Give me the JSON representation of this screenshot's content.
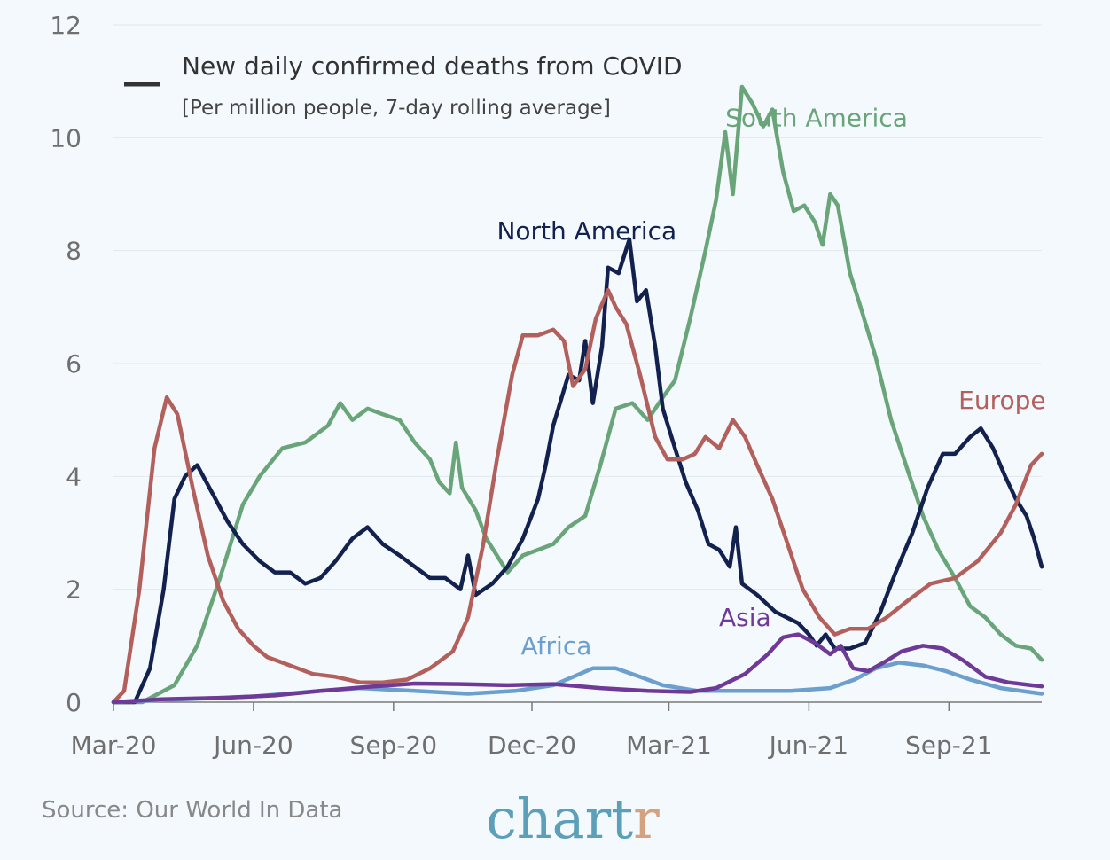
{
  "chart_data": {
    "type": "line",
    "title": "New daily confirmed deaths from COVID",
    "subtitle": "[Per million people, 7-day rolling average]",
    "ylim": [
      0,
      12
    ],
    "yticks": [
      0,
      2,
      4,
      6,
      8,
      10,
      12
    ],
    "x_start": "2020-03-01",
    "x_end": "2021-11-01",
    "xticks": [
      {
        "date": "2020-03-01",
        "label": "Mar-20"
      },
      {
        "date": "2020-06-01",
        "label": "Jun-20"
      },
      {
        "date": "2020-09-01",
        "label": "Sep-20"
      },
      {
        "date": "2020-12-01",
        "label": "Dec-20"
      },
      {
        "date": "2021-03-01",
        "label": "Mar-21"
      },
      {
        "date": "2021-06-01",
        "label": "Jun-21"
      },
      {
        "date": "2021-09-01",
        "label": "Sep-21"
      }
    ],
    "grid": true,
    "series": [
      {
        "name": "South America",
        "color": "#6aa57a",
        "label_date": "2021-06-06",
        "label_value": 10.2,
        "points": [
          [
            "2020-03-01",
            0
          ],
          [
            "2020-03-20",
            0
          ],
          [
            "2020-04-10",
            0.3
          ],
          [
            "2020-04-25",
            1
          ],
          [
            "2020-05-10",
            2.2
          ],
          [
            "2020-05-25",
            3.5
          ],
          [
            "2020-06-05",
            4.0
          ],
          [
            "2020-06-20",
            4.5
          ],
          [
            "2020-07-05",
            4.6
          ],
          [
            "2020-07-20",
            4.9
          ],
          [
            "2020-07-28",
            5.3
          ],
          [
            "2020-08-05",
            5.0
          ],
          [
            "2020-08-15",
            5.2
          ],
          [
            "2020-08-25",
            5.1
          ],
          [
            "2020-09-05",
            5.0
          ],
          [
            "2020-09-15",
            4.6
          ],
          [
            "2020-09-25",
            4.3
          ],
          [
            "2020-10-01",
            3.9
          ],
          [
            "2020-10-08",
            3.7
          ],
          [
            "2020-10-12",
            4.6
          ],
          [
            "2020-10-16",
            3.8
          ],
          [
            "2020-10-25",
            3.4
          ],
          [
            "2020-11-01",
            2.9
          ],
          [
            "2020-11-08",
            2.6
          ],
          [
            "2020-11-15",
            2.3
          ],
          [
            "2020-11-25",
            2.6
          ],
          [
            "2020-12-05",
            2.7
          ],
          [
            "2020-12-15",
            2.8
          ],
          [
            "2020-12-25",
            3.1
          ],
          [
            "2021-01-05",
            3.3
          ],
          [
            "2021-01-15",
            4.2
          ],
          [
            "2021-01-25",
            5.2
          ],
          [
            "2021-02-05",
            5.3
          ],
          [
            "2021-02-15",
            5.0
          ],
          [
            "2021-02-25",
            5.4
          ],
          [
            "2021-03-05",
            5.7
          ],
          [
            "2021-03-15",
            6.8
          ],
          [
            "2021-03-25",
            8.0
          ],
          [
            "2021-04-01",
            8.9
          ],
          [
            "2021-04-07",
            10.1
          ],
          [
            "2021-04-12",
            9.0
          ],
          [
            "2021-04-18",
            10.9
          ],
          [
            "2021-04-25",
            10.6
          ],
          [
            "2021-05-02",
            10.2
          ],
          [
            "2021-05-08",
            10.5
          ],
          [
            "2021-05-15",
            9.4
          ],
          [
            "2021-05-22",
            8.7
          ],
          [
            "2021-05-29",
            8.8
          ],
          [
            "2021-06-05",
            8.5
          ],
          [
            "2021-06-10",
            8.1
          ],
          [
            "2021-06-15",
            9.0
          ],
          [
            "2021-06-20",
            8.8
          ],
          [
            "2021-06-28",
            7.6
          ],
          [
            "2021-07-05",
            7.0
          ],
          [
            "2021-07-15",
            6.1
          ],
          [
            "2021-07-25",
            5.0
          ],
          [
            "2021-08-05",
            4.1
          ],
          [
            "2021-08-15",
            3.3
          ],
          [
            "2021-08-25",
            2.7
          ],
          [
            "2021-09-05",
            2.2
          ],
          [
            "2021-09-15",
            1.7
          ],
          [
            "2021-09-25",
            1.5
          ],
          [
            "2021-10-05",
            1.2
          ],
          [
            "2021-10-15",
            1.0
          ],
          [
            "2021-10-25",
            0.95
          ],
          [
            "2021-11-01",
            0.75
          ]
        ]
      },
      {
        "name": "North America",
        "color": "#13214f",
        "label_date": "2021-01-06",
        "label_value": 8.2,
        "points": [
          [
            "2020-03-01",
            0
          ],
          [
            "2020-03-15",
            0
          ],
          [
            "2020-03-25",
            0.6
          ],
          [
            "2020-04-03",
            2.0
          ],
          [
            "2020-04-10",
            3.6
          ],
          [
            "2020-04-17",
            4.0
          ],
          [
            "2020-04-25",
            4.2
          ],
          [
            "2020-05-05",
            3.7
          ],
          [
            "2020-05-15",
            3.2
          ],
          [
            "2020-05-25",
            2.8
          ],
          [
            "2020-06-05",
            2.5
          ],
          [
            "2020-06-15",
            2.3
          ],
          [
            "2020-06-25",
            2.3
          ],
          [
            "2020-07-05",
            2.1
          ],
          [
            "2020-07-15",
            2.2
          ],
          [
            "2020-07-25",
            2.5
          ],
          [
            "2020-08-05",
            2.9
          ],
          [
            "2020-08-15",
            3.1
          ],
          [
            "2020-08-25",
            2.8
          ],
          [
            "2020-09-05",
            2.6
          ],
          [
            "2020-09-15",
            2.4
          ],
          [
            "2020-09-25",
            2.2
          ],
          [
            "2020-10-05",
            2.2
          ],
          [
            "2020-10-15",
            2.0
          ],
          [
            "2020-10-20",
            2.6
          ],
          [
            "2020-10-25",
            1.9
          ],
          [
            "2020-11-05",
            2.1
          ],
          [
            "2020-11-15",
            2.4
          ],
          [
            "2020-11-25",
            2.9
          ],
          [
            "2020-12-05",
            3.6
          ],
          [
            "2020-12-10",
            4.2
          ],
          [
            "2020-12-15",
            4.9
          ],
          [
            "2020-12-25",
            5.8
          ],
          [
            "2021-01-01",
            5.7
          ],
          [
            "2021-01-05",
            6.4
          ],
          [
            "2021-01-10",
            5.3
          ],
          [
            "2021-01-16",
            6.3
          ],
          [
            "2021-01-20",
            7.7
          ],
          [
            "2021-01-27",
            7.6
          ],
          [
            "2021-02-03",
            8.2
          ],
          [
            "2021-02-08",
            7.1
          ],
          [
            "2021-02-14",
            7.3
          ],
          [
            "2021-02-20",
            6.3
          ],
          [
            "2021-02-25",
            5.2
          ],
          [
            "2021-03-05",
            4.5
          ],
          [
            "2021-03-12",
            3.9
          ],
          [
            "2021-03-20",
            3.4
          ],
          [
            "2021-03-27",
            2.8
          ],
          [
            "2021-04-03",
            2.7
          ],
          [
            "2021-04-10",
            2.4
          ],
          [
            "2021-04-14",
            3.1
          ],
          [
            "2021-04-18",
            2.1
          ],
          [
            "2021-04-28",
            1.9
          ],
          [
            "2021-05-10",
            1.6
          ],
          [
            "2021-05-25",
            1.4
          ],
          [
            "2021-06-01",
            1.2
          ],
          [
            "2021-06-06",
            1.0
          ],
          [
            "2021-06-12",
            1.2
          ],
          [
            "2021-06-18",
            0.95
          ],
          [
            "2021-06-28",
            0.95
          ],
          [
            "2021-07-08",
            1.05
          ],
          [
            "2021-07-18",
            1.6
          ],
          [
            "2021-07-28",
            2.3
          ],
          [
            "2021-08-08",
            3.0
          ],
          [
            "2021-08-18",
            3.8
          ],
          [
            "2021-08-28",
            4.4
          ],
          [
            "2021-09-05",
            4.4
          ],
          [
            "2021-09-15",
            4.7
          ],
          [
            "2021-09-22",
            4.85
          ],
          [
            "2021-09-30",
            4.5
          ],
          [
            "2021-10-08",
            4.0
          ],
          [
            "2021-10-15",
            3.6
          ],
          [
            "2021-10-22",
            3.3
          ],
          [
            "2021-10-27",
            2.9
          ],
          [
            "2021-11-01",
            2.4
          ]
        ]
      },
      {
        "name": "Europe",
        "color": "#b3605c",
        "label_date": "2021-10-06",
        "label_value": 5.2,
        "points": [
          [
            "2020-03-01",
            0
          ],
          [
            "2020-03-08",
            0.2
          ],
          [
            "2020-03-18",
            2.0
          ],
          [
            "2020-03-28",
            4.5
          ],
          [
            "2020-04-05",
            5.4
          ],
          [
            "2020-04-12",
            5.1
          ],
          [
            "2020-04-22",
            3.8
          ],
          [
            "2020-05-02",
            2.6
          ],
          [
            "2020-05-12",
            1.8
          ],
          [
            "2020-05-22",
            1.3
          ],
          [
            "2020-06-01",
            1.0
          ],
          [
            "2020-06-10",
            0.8
          ],
          [
            "2020-06-20",
            0.7
          ],
          [
            "2020-06-30",
            0.6
          ],
          [
            "2020-07-10",
            0.5
          ],
          [
            "2020-07-25",
            0.45
          ],
          [
            "2020-08-10",
            0.35
          ],
          [
            "2020-08-25",
            0.35
          ],
          [
            "2020-09-10",
            0.4
          ],
          [
            "2020-09-25",
            0.6
          ],
          [
            "2020-10-10",
            0.9
          ],
          [
            "2020-10-20",
            1.5
          ],
          [
            "2020-10-30",
            2.8
          ],
          [
            "2020-11-08",
            4.3
          ],
          [
            "2020-11-18",
            5.8
          ],
          [
            "2020-11-25",
            6.5
          ],
          [
            "2020-12-05",
            6.5
          ],
          [
            "2020-12-15",
            6.6
          ],
          [
            "2020-12-22",
            6.4
          ],
          [
            "2020-12-28",
            5.6
          ],
          [
            "2021-01-05",
            5.9
          ],
          [
            "2021-01-12",
            6.8
          ],
          [
            "2021-01-20",
            7.3
          ],
          [
            "2021-01-25",
            7.0
          ],
          [
            "2021-02-01",
            6.7
          ],
          [
            "2021-02-10",
            5.8
          ],
          [
            "2021-02-20",
            4.7
          ],
          [
            "2021-02-28",
            4.3
          ],
          [
            "2021-03-10",
            4.3
          ],
          [
            "2021-03-18",
            4.4
          ],
          [
            "2021-03-25",
            4.7
          ],
          [
            "2021-04-03",
            4.5
          ],
          [
            "2021-04-12",
            5.0
          ],
          [
            "2021-04-20",
            4.7
          ],
          [
            "2021-04-28",
            4.2
          ],
          [
            "2021-05-08",
            3.6
          ],
          [
            "2021-05-18",
            2.8
          ],
          [
            "2021-05-28",
            2.0
          ],
          [
            "2021-06-08",
            1.5
          ],
          [
            "2021-06-18",
            1.2
          ],
          [
            "2021-06-28",
            1.3
          ],
          [
            "2021-07-10",
            1.3
          ],
          [
            "2021-07-22",
            1.5
          ],
          [
            "2021-08-05",
            1.8
          ],
          [
            "2021-08-20",
            2.1
          ],
          [
            "2021-09-05",
            2.2
          ],
          [
            "2021-09-20",
            2.5
          ],
          [
            "2021-10-05",
            3.0
          ],
          [
            "2021-10-15",
            3.5
          ],
          [
            "2021-10-25",
            4.2
          ],
          [
            "2021-11-01",
            4.4
          ]
        ]
      },
      {
        "name": "Africa",
        "color": "#6c9fcd",
        "label_date": "2020-12-17",
        "label_value": 0.85,
        "points": [
          [
            "2020-03-01",
            0
          ],
          [
            "2020-04-15",
            0.05
          ],
          [
            "2020-06-01",
            0.1
          ],
          [
            "2020-07-15",
            0.2
          ],
          [
            "2020-08-10",
            0.25
          ],
          [
            "2020-09-15",
            0.2
          ],
          [
            "2020-10-20",
            0.15
          ],
          [
            "2020-11-20",
            0.2
          ],
          [
            "2020-12-15",
            0.3
          ],
          [
            "2020-12-28",
            0.45
          ],
          [
            "2021-01-10",
            0.6
          ],
          [
            "2021-01-25",
            0.6
          ],
          [
            "2021-02-10",
            0.45
          ],
          [
            "2021-02-25",
            0.3
          ],
          [
            "2021-03-20",
            0.2
          ],
          [
            "2021-04-20",
            0.2
          ],
          [
            "2021-05-20",
            0.2
          ],
          [
            "2021-06-15",
            0.25
          ],
          [
            "2021-07-01",
            0.4
          ],
          [
            "2021-07-15",
            0.6
          ],
          [
            "2021-07-30",
            0.7
          ],
          [
            "2021-08-15",
            0.65
          ],
          [
            "2021-08-30",
            0.55
          ],
          [
            "2021-09-15",
            0.4
          ],
          [
            "2021-10-05",
            0.25
          ],
          [
            "2021-11-01",
            0.15
          ]
        ]
      },
      {
        "name": "Asia",
        "color": "#6f3a97",
        "label_date": "2021-04-20",
        "label_value": 1.35,
        "points": [
          [
            "2020-03-01",
            0
          ],
          [
            "2020-04-01",
            0.05
          ],
          [
            "2020-05-15",
            0.08
          ],
          [
            "2020-06-15",
            0.12
          ],
          [
            "2020-07-15",
            0.2
          ],
          [
            "2020-08-15",
            0.27
          ],
          [
            "2020-09-15",
            0.33
          ],
          [
            "2020-10-15",
            0.32
          ],
          [
            "2020-11-15",
            0.3
          ],
          [
            "2020-12-15",
            0.32
          ],
          [
            "2021-01-15",
            0.25
          ],
          [
            "2021-02-15",
            0.2
          ],
          [
            "2021-03-15",
            0.18
          ],
          [
            "2021-04-01",
            0.25
          ],
          [
            "2021-04-20",
            0.5
          ],
          [
            "2021-05-05",
            0.85
          ],
          [
            "2021-05-15",
            1.15
          ],
          [
            "2021-05-25",
            1.2
          ],
          [
            "2021-06-05",
            1.05
          ],
          [
            "2021-06-15",
            0.85
          ],
          [
            "2021-06-22",
            1.0
          ],
          [
            "2021-06-30",
            0.6
          ],
          [
            "2021-07-10",
            0.55
          ],
          [
            "2021-07-20",
            0.7
          ],
          [
            "2021-08-01",
            0.9
          ],
          [
            "2021-08-15",
            1.0
          ],
          [
            "2021-08-28",
            0.95
          ],
          [
            "2021-09-10",
            0.75
          ],
          [
            "2021-09-25",
            0.45
          ],
          [
            "2021-10-10",
            0.35
          ],
          [
            "2021-10-25",
            0.3
          ],
          [
            "2021-11-01",
            0.28
          ]
        ]
      }
    ]
  },
  "legend": {
    "swatch_color": "#333333"
  },
  "source": "Source: Our World In Data",
  "brand": {
    "prefix": "chart",
    "suffix": "r",
    "color": "#5b9fb8",
    "suffix_color": "#d4a27f"
  }
}
